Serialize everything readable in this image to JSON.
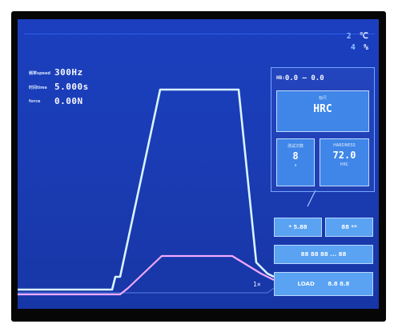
{
  "environment": {
    "temperature_value": "2",
    "temperature_unit": "℃",
    "humidity_value": "4",
    "humidity_unit": "%"
  },
  "readouts": [
    {
      "label": "频率speed",
      "value": "300Hz"
    },
    {
      "label": "时间time",
      "value": "5.000s"
    },
    {
      "label": "force",
      "value": "0.00N"
    }
  ],
  "panel": {
    "header_label": "HB:",
    "header_value": "0.0 — 0.0",
    "scale": {
      "label": "标尺",
      "value": "HRC"
    },
    "test_count": {
      "label": "测试次数",
      "value": "8",
      "unit": "s"
    },
    "hardness": {
      "label": "HARDNESS",
      "value": "72.0",
      "unit": "HRC"
    }
  },
  "buttons": {
    "left_top": "* 5.88",
    "right_top": "88 **",
    "middle": "88 88 88 ... 88",
    "bottom_left": "LOAD",
    "bottom_right": "8.8 8.8"
  },
  "plot_multiplier": "1×",
  "colors": {
    "screen": "#1a3bb2",
    "trace_main": "#d8f4ff",
    "trace_secondary": "#f0a8ff",
    "button": "#5aa2f2"
  }
}
